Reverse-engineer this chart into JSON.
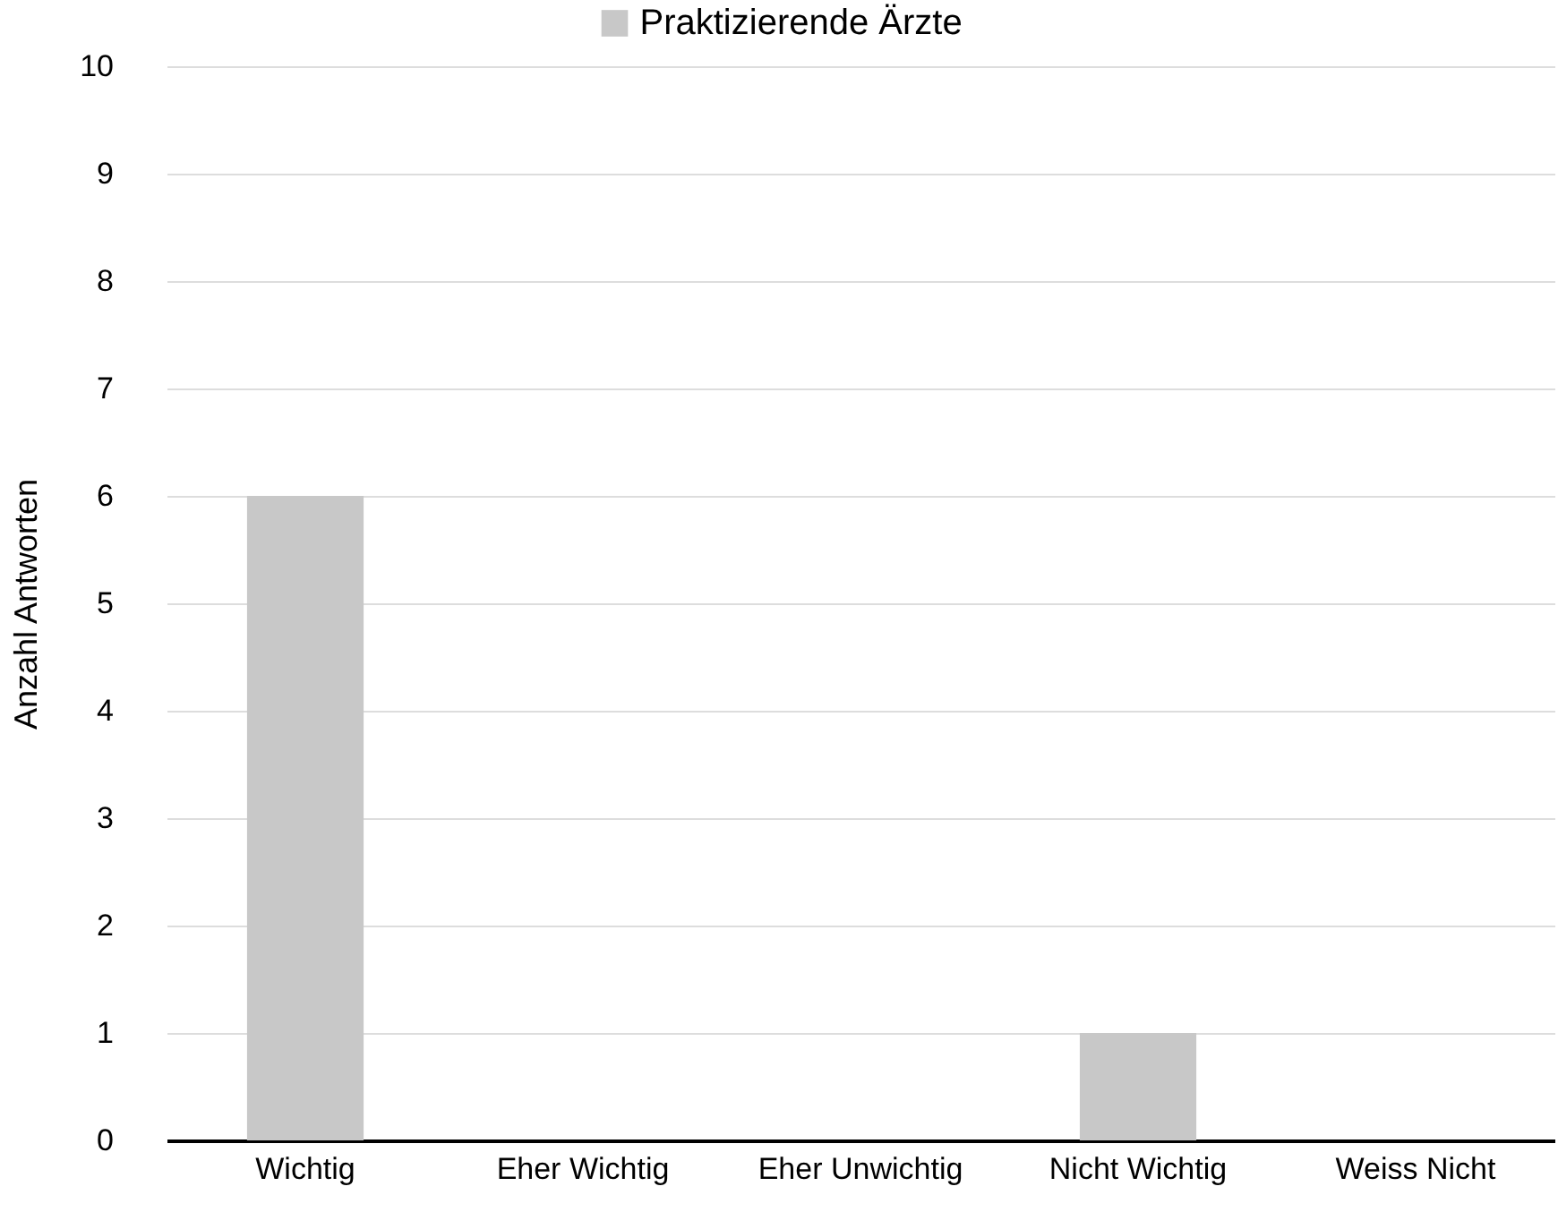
{
  "chart_data": {
    "type": "bar",
    "ylabel": "Anzahl Antworten",
    "categories": [
      "Wichtig",
      "Eher Wichtig",
      "Eher Unwichtig",
      "Nicht Wichtig",
      "Weiss Nicht"
    ],
    "series": [
      {
        "name": "Praktizierende Ärzte",
        "color": "#c8c8c8",
        "values": [
          6,
          0,
          0,
          1,
          0
        ]
      }
    ],
    "ylim": [
      0,
      10
    ],
    "yticks": [
      0,
      1,
      2,
      3,
      4,
      5,
      6,
      7,
      8,
      9,
      10
    ],
    "grid": "y",
    "legend": "top"
  }
}
